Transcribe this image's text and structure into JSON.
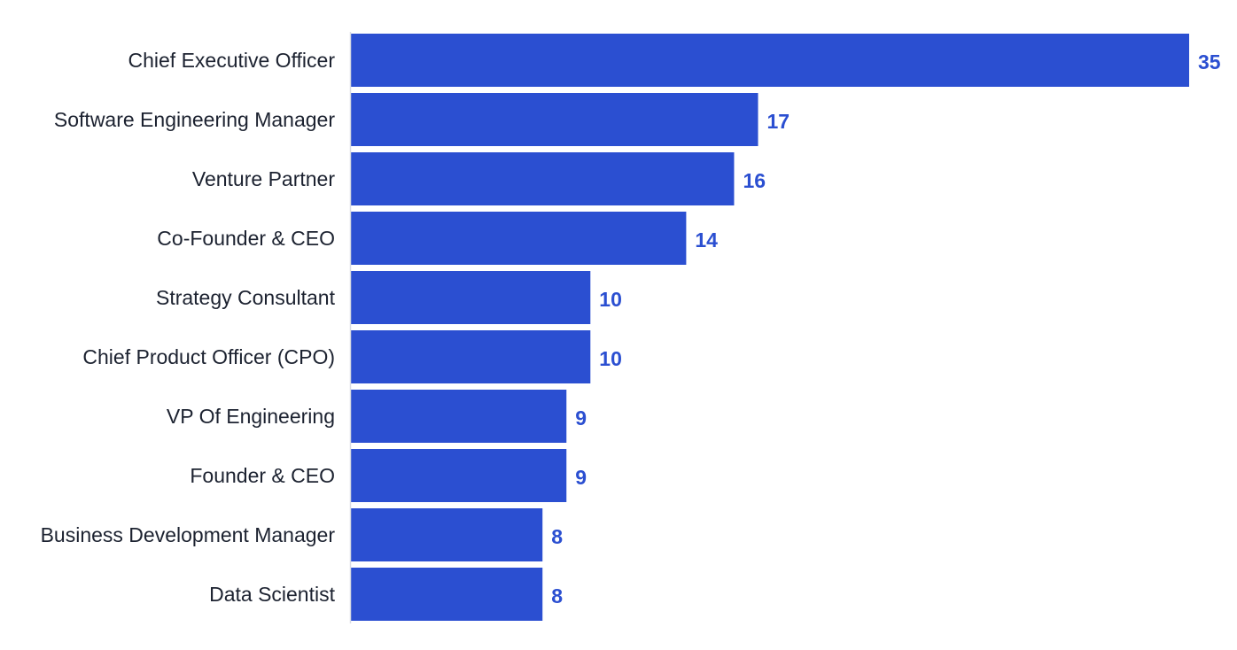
{
  "chart_data": {
    "type": "bar",
    "orientation": "horizontal",
    "categories": [
      "Chief Executive Officer",
      "Software Engineering Manager",
      "Venture Partner",
      "Co-Founder & CEO",
      "Strategy Consultant",
      "Chief Product Officer (CPO)",
      "VP Of Engineering",
      "Founder & CEO",
      "Business Development Manager",
      "Data Scientist"
    ],
    "values": [
      35,
      17,
      16,
      14,
      10,
      10,
      9,
      9,
      8,
      8
    ],
    "data_labels": [
      "35",
      "17",
      "16",
      "14",
      "10",
      "10",
      "9",
      "9",
      "8",
      "8"
    ],
    "xlim": [
      0,
      35
    ],
    "grid": false,
    "legend": "none",
    "colors": {
      "bar": "#2b4fd1",
      "value_label": "#2b4fd1",
      "category_label": "#1c2230",
      "axis_line": "#d9dce3"
    }
  }
}
